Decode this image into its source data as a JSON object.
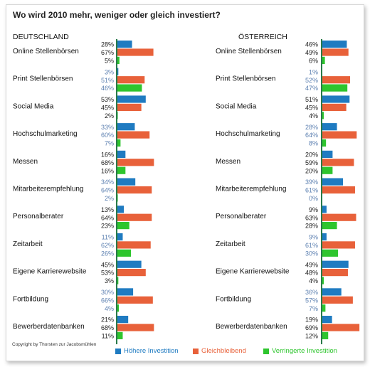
{
  "title": "Wo wird 2010 mehr, weniger oder gleich investiert?",
  "copyright": "Copyright by Thorsten zur Jacobsmühlen",
  "legend": [
    {
      "label": "Höhere Investition",
      "color": "#1f7bc1"
    },
    {
      "label": "Gleichbleibend",
      "color": "#e8613a"
    },
    {
      "label": "Verringerte Investition",
      "color": "#2ec52e"
    }
  ],
  "chart_data": [
    {
      "type": "bar",
      "title": "DEUTSCHLAND",
      "categories": [
        "Online Stellenbörsen",
        "Print Stellenbörsen",
        "Social Media",
        "Hochschulmarketing",
        "Messen",
        "Mitarbeiterempfehlung",
        "Personalberater",
        "Zeitarbeit",
        "Eigene Karrierewebsite",
        "Fortbildung",
        "Bewerberdatenbanken"
      ],
      "series": [
        {
          "name": "Höhere Investition",
          "values": [
            28,
            3,
            53,
            33,
            16,
            34,
            13,
            11,
            45,
            30,
            21
          ]
        },
        {
          "name": "Gleichbleibend",
          "values": [
            67,
            51,
            45,
            60,
            68,
            64,
            64,
            62,
            53,
            66,
            68
          ]
        },
        {
          "name": "Verringerte Investition",
          "values": [
            5,
            46,
            2,
            7,
            16,
            2,
            23,
            26,
            3,
            4,
            11
          ]
        }
      ],
      "label_style": [
        "dark",
        "blue",
        "dark",
        "blue",
        "dark",
        "blue",
        "dark",
        "blue",
        "dark",
        "blue",
        "dark"
      ],
      "unit": "%"
    },
    {
      "type": "bar",
      "title": "ÖSTERREICH",
      "categories": [
        "Online Stellenbörsen",
        "Print Stellenbörsen",
        "Social Media",
        "Hochschulmarketing",
        "Messen",
        "Mitarbeiterempfehlung",
        "Personalberater",
        "Zeitarbeit",
        "Eigene Karrierewebsite",
        "Fortbildung",
        "Bewerberdatenbanken"
      ],
      "series": [
        {
          "name": "Höhere Investition",
          "values": [
            46,
            1,
            51,
            28,
            20,
            39,
            9,
            9,
            49,
            36,
            19
          ]
        },
        {
          "name": "Gleichbleibend",
          "values": [
            49,
            52,
            45,
            64,
            59,
            61,
            63,
            61,
            48,
            57,
            69
          ]
        },
        {
          "name": "Verringerte Investition",
          "values": [
            6,
            47,
            4,
            8,
            20,
            0,
            28,
            30,
            4,
            7,
            12
          ]
        }
      ],
      "label_style": [
        "dark",
        "blue",
        "dark",
        "blue",
        "dark",
        "blue",
        "dark",
        "blue",
        "dark",
        "blue",
        "dark"
      ],
      "unit": "%"
    }
  ]
}
